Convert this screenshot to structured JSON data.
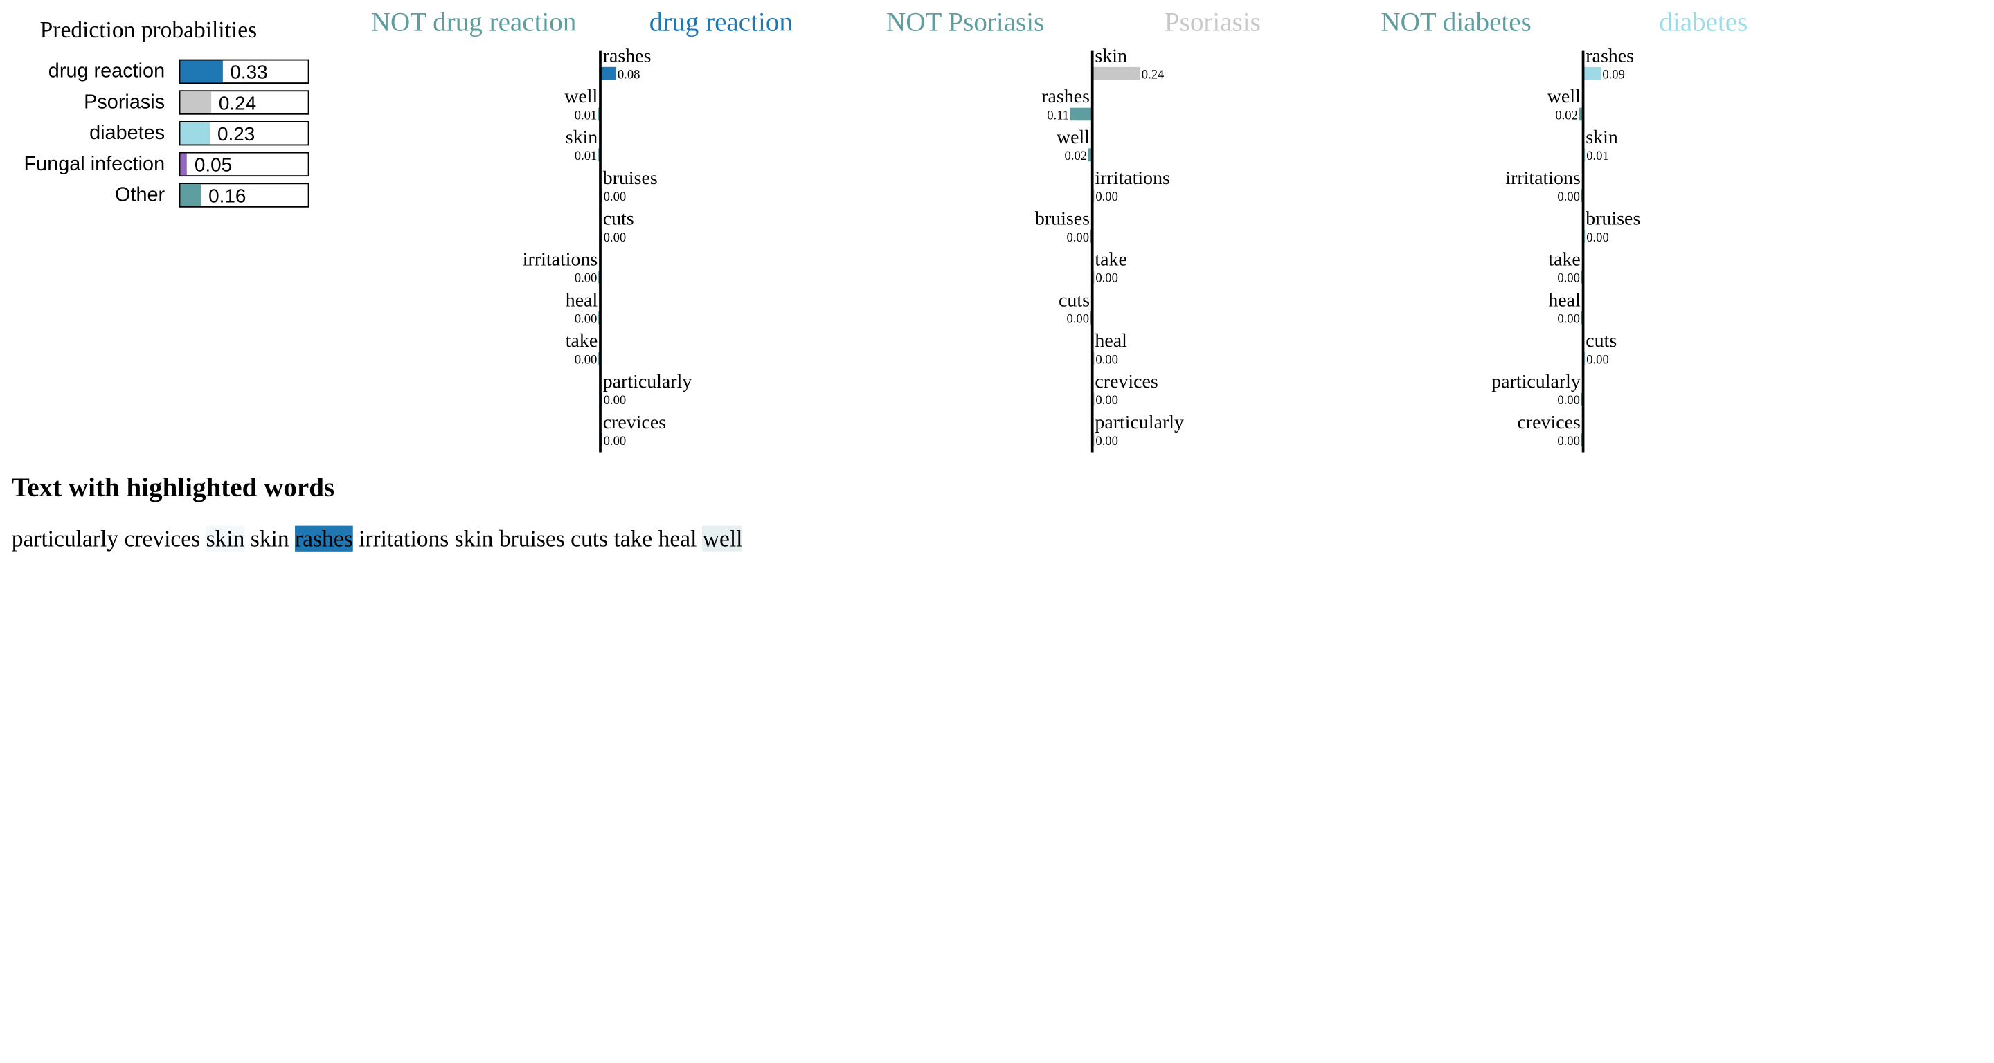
{
  "prediction_probabilities": {
    "title": "Prediction probabilities",
    "items": [
      {
        "label": "drug reaction",
        "value": "0.33",
        "fraction": 0.33,
        "color": "#1f77b4"
      },
      {
        "label": "Psoriasis",
        "value": "0.24",
        "fraction": 0.24,
        "color": "#c7c7c7"
      },
      {
        "label": "diabetes",
        "value": "0.23",
        "fraction": 0.23,
        "color": "#9edae5"
      },
      {
        "label": "Fungal infection",
        "value": "0.05",
        "fraction": 0.05,
        "color": "#9467bd"
      },
      {
        "label": "Other",
        "value": "0.16",
        "fraction": 0.16,
        "color": "#5f9ea0"
      }
    ]
  },
  "class_headers": [
    {
      "label": "NOT drug reaction",
      "color": "#5f9ea0"
    },
    {
      "label": "drug reaction",
      "color": "#1f77b4"
    },
    {
      "label": "NOT Psoriasis",
      "color": "#5f9ea0"
    },
    {
      "label": "Psoriasis",
      "color": "#c7c7c7"
    },
    {
      "label": "NOT diabetes",
      "color": "#5f9ea0"
    },
    {
      "label": "diabetes",
      "color": "#9edae5"
    }
  ],
  "chart_data": [
    {
      "type": "bar",
      "positive_class": "drug reaction",
      "negative_class": "NOT drug reaction",
      "positive_color": "#1f77b4",
      "negative_color": "#5f9ea0",
      "features": [
        {
          "word": "rashes",
          "value": 0.08,
          "label": "0.08"
        },
        {
          "word": "well",
          "value": -0.01,
          "label": "0.01"
        },
        {
          "word": "skin",
          "value": -0.005,
          "label": "0.01"
        },
        {
          "word": "bruises",
          "value": 0.001,
          "label": "0.00"
        },
        {
          "word": "cuts",
          "value": 0.001,
          "label": "0.00"
        },
        {
          "word": "irritations",
          "value": -0.001,
          "label": "0.00"
        },
        {
          "word": "heal",
          "value": -0.001,
          "label": "0.00"
        },
        {
          "word": "take",
          "value": -0.001,
          "label": "0.00"
        },
        {
          "word": "particularly",
          "value": 0.001,
          "label": "0.00"
        },
        {
          "word": "crevices",
          "value": 0.001,
          "label": "0.00"
        }
      ]
    },
    {
      "type": "bar",
      "positive_class": "Psoriasis",
      "negative_class": "NOT Psoriasis",
      "positive_color": "#c7c7c7",
      "negative_color": "#5f9ea0",
      "features": [
        {
          "word": "skin",
          "value": 0.24,
          "label": "0.24"
        },
        {
          "word": "rashes",
          "value": -0.11,
          "label": "0.11"
        },
        {
          "word": "well",
          "value": -0.02,
          "label": "0.02"
        },
        {
          "word": "irritations",
          "value": 0.001,
          "label": "0.00"
        },
        {
          "word": "bruises",
          "value": -0.001,
          "label": "0.00"
        },
        {
          "word": "take",
          "value": 0.001,
          "label": "0.00"
        },
        {
          "word": "cuts",
          "value": -0.001,
          "label": "0.00"
        },
        {
          "word": "heal",
          "value": 0.001,
          "label": "0.00"
        },
        {
          "word": "crevices",
          "value": 0.001,
          "label": "0.00"
        },
        {
          "word": "particularly",
          "value": 0.001,
          "label": "0.00"
        }
      ]
    },
    {
      "type": "bar",
      "positive_class": "diabetes",
      "negative_class": "NOT diabetes",
      "positive_color": "#9edae5",
      "negative_color": "#5f9ea0",
      "features": [
        {
          "word": "rashes",
          "value": 0.09,
          "label": "0.09"
        },
        {
          "word": "well",
          "value": -0.02,
          "label": "0.02"
        },
        {
          "word": "skin",
          "value": 0.005,
          "label": "0.01"
        },
        {
          "word": "irritations",
          "value": -0.001,
          "label": "0.00"
        },
        {
          "word": "bruises",
          "value": 0.001,
          "label": "0.00"
        },
        {
          "word": "take",
          "value": -0.001,
          "label": "0.00"
        },
        {
          "word": "heal",
          "value": -0.001,
          "label": "0.00"
        },
        {
          "word": "cuts",
          "value": 0.001,
          "label": "0.00"
        },
        {
          "word": "particularly",
          "value": -0.001,
          "label": "0.00"
        },
        {
          "word": "crevices",
          "value": -0.001,
          "label": "0.00"
        }
      ]
    }
  ],
  "highlighted_text": {
    "title": "Text with highlighted words",
    "words": [
      {
        "text": "particularly",
        "highlight": ""
      },
      {
        "text": "crevices",
        "highlight": ""
      },
      {
        "text": "skin",
        "highlight": "#f3f8fb"
      },
      {
        "text": "skin",
        "highlight": ""
      },
      {
        "text": "rashes",
        "highlight": "#1f77b4"
      },
      {
        "text": "irritations",
        "highlight": ""
      },
      {
        "text": "skin",
        "highlight": ""
      },
      {
        "text": "bruises",
        "highlight": ""
      },
      {
        "text": "cuts",
        "highlight": ""
      },
      {
        "text": "take",
        "highlight": ""
      },
      {
        "text": "heal",
        "highlight": ""
      },
      {
        "text": "well",
        "highlight": "#e7f0f0"
      }
    ]
  }
}
